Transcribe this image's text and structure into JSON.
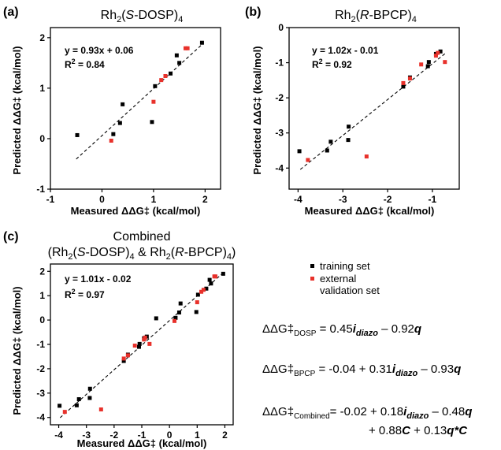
{
  "colors": {
    "training": "#000000",
    "validation": "#e8312b",
    "axis": "#000000",
    "fit_line": "#000000"
  },
  "legend": {
    "training_label": "training set",
    "validation_label_line1": "external",
    "validation_label_line2": "validation set"
  },
  "models": {
    "dosp": {
      "lhs_main": "ΔΔG‡",
      "lhs_sub": "DOSP",
      "eq_sign": " = ",
      "term1": "0.45",
      "term1_var": "i",
      "term1_var_sub": "diazo",
      "term2": " – 0.92",
      "term2_var": "q"
    },
    "bpcp": {
      "lhs_main": "ΔΔG‡",
      "lhs_sub": "BPCP",
      "eq_sign": " = ",
      "term1": "-0.04 + 0.31",
      "term1_var": "i",
      "term1_var_sub": "diazo",
      "term2": " – 0.93",
      "term2_var": "q"
    },
    "combined": {
      "lhs_main": "ΔΔG‡",
      "lhs_sub": "Combined",
      "eq_sign": "= ",
      "line1_a": "-0.02 + 0.18",
      "line1_var": "i",
      "line1_var_sub": "diazo",
      "line1_b": " – 0.48",
      "line1_var2": "q",
      "line2_a": "+ 0.88",
      "line2_var": "C",
      "line2_b": " + 0.13",
      "line2_var2": "q*C"
    }
  },
  "chart_data": [
    {
      "id": "a",
      "panel_letter": "(a)",
      "type": "scatter",
      "title_parts": {
        "pre": "Rh",
        "sub": "2",
        "mid": "(",
        "ital": "S",
        "post": "-DOSP)",
        "sub2": "4"
      },
      "xlabel": "Measured ΔΔG‡ (kcal/mol)",
      "ylabel": "Predicted ΔΔG‡ (kcal/mol)",
      "xlim": [
        -1,
        2.3
      ],
      "ylim": [
        -1,
        2.2
      ],
      "xticks": [
        -1,
        0,
        1,
        2
      ],
      "yticks": [
        -1,
        0,
        1,
        2
      ],
      "fit_equation": "y = 0.93x + 0.06",
      "r2_label": "R",
      "r2_sup": "2",
      "r2_value": " = 0.84",
      "fit": {
        "slope": 0.93,
        "intercept": 0.06,
        "x_range": [
          -0.5,
          1.97
        ]
      },
      "series": [
        {
          "name": "training set",
          "color_key": "training",
          "points": [
            [
              -0.48,
              0.07
            ],
            [
              0.22,
              0.09
            ],
            [
              0.35,
              0.31
            ],
            [
              0.4,
              0.68
            ],
            [
              0.97,
              0.33
            ],
            [
              1.03,
              1.04
            ],
            [
              1.33,
              1.29
            ],
            [
              1.45,
              1.65
            ],
            [
              1.5,
              1.5
            ],
            [
              1.94,
              1.9
            ]
          ]
        },
        {
          "name": "external validation set",
          "color_key": "validation",
          "points": [
            [
              0.18,
              -0.04
            ],
            [
              1.0,
              0.73
            ],
            [
              1.15,
              1.16
            ],
            [
              1.23,
              1.24
            ],
            [
              1.62,
              1.79
            ],
            [
              1.66,
              1.79
            ]
          ]
        }
      ]
    },
    {
      "id": "b",
      "panel_letter": "(b)",
      "type": "scatter",
      "title_parts": {
        "pre": "Rh",
        "sub": "2",
        "mid": "(",
        "ital": "R",
        "post": "-BPCP)",
        "sub2": "4"
      },
      "xlabel": "Measured ΔΔG‡ (kcal/mol)",
      "ylabel": "Predicted ΔΔG‡ (kcal/mol)",
      "xlim": [
        -4.2,
        -0.4
      ],
      "ylim": [
        -4.6,
        0
      ],
      "xticks": [
        -4,
        -3,
        -2,
        -1
      ],
      "yticks": [
        -4,
        -3,
        -2,
        -1,
        0
      ],
      "fit_equation": "y = 1.02x - 0.01",
      "r2_label": "R",
      "r2_sup": "2",
      "r2_value": " = 0.92",
      "fit": {
        "slope": 1.02,
        "intercept": -0.01,
        "x_range": [
          -3.95,
          -0.72
        ]
      },
      "series": [
        {
          "name": "training set",
          "color_key": "training",
          "points": [
            [
              -3.97,
              -3.52
            ],
            [
              -3.35,
              -3.5
            ],
            [
              -3.27,
              -3.25
            ],
            [
              -2.87,
              -2.82
            ],
            [
              -2.88,
              -3.2
            ],
            [
              -1.65,
              -1.68
            ],
            [
              -1.5,
              -1.42
            ],
            [
              -1.1,
              -1.1
            ],
            [
              -1.08,
              -0.98
            ],
            [
              -0.92,
              -0.75
            ],
            [
              -0.82,
              -0.68
            ]
          ]
        },
        {
          "name": "external validation set",
          "color_key": "validation",
          "points": [
            [
              -3.78,
              -3.77
            ],
            [
              -2.47,
              -3.67
            ],
            [
              -1.65,
              -1.58
            ],
            [
              -1.5,
              -1.45
            ],
            [
              -1.25,
              -1.05
            ],
            [
              -0.92,
              -0.8
            ],
            [
              -0.88,
              -0.72
            ],
            [
              -0.72,
              -0.98
            ]
          ]
        }
      ]
    },
    {
      "id": "c",
      "panel_letter": "(c)",
      "type": "scatter",
      "title_line1": "Combined",
      "title_line2": {
        "pre1": "(Rh",
        "sub1": "2",
        "mid1": "(",
        "ital1": "S",
        "post1": "-DOSP)",
        "sub1b": "4",
        "amp": " & Rh",
        "sub2": "2",
        "mid2": "(",
        "ital2": "R",
        "post2": "-BPCP)",
        "sub2b": "4",
        "close": ")"
      },
      "xlabel": "Measured ΔΔG‡ (kcal/mol)",
      "ylabel": "Predicted ΔΔG‡ (kcal/mol)",
      "xlim": [
        -4.3,
        2.3
      ],
      "ylim": [
        -4.3,
        2.3
      ],
      "xticks": [
        -4,
        -3,
        -2,
        -1,
        0,
        1,
        2
      ],
      "yticks": [
        -4,
        -3,
        -2,
        -1,
        0,
        1,
        2
      ],
      "fit_equation": "y = 1.01x - 0.02",
      "r2_label": "R",
      "r2_sup": "2",
      "r2_value": " = 0.97",
      "fit": {
        "slope": 1.01,
        "intercept": -0.02,
        "x_range": [
          -3.95,
          1.95
        ]
      },
      "series": [
        {
          "name": "training set",
          "color_key": "training",
          "points": [
            [
              -3.97,
              -3.52
            ],
            [
              -3.35,
              -3.5
            ],
            [
              -3.27,
              -3.25
            ],
            [
              -2.87,
              -2.82
            ],
            [
              -2.88,
              -3.2
            ],
            [
              -1.65,
              -1.68
            ],
            [
              -1.5,
              -1.42
            ],
            [
              -1.1,
              -1.1
            ],
            [
              -1.08,
              -0.98
            ],
            [
              -0.92,
              -0.75
            ],
            [
              -0.82,
              -0.68
            ],
            [
              -0.48,
              0.07
            ],
            [
              0.22,
              0.09
            ],
            [
              0.35,
              0.31
            ],
            [
              0.4,
              0.68
            ],
            [
              0.97,
              0.33
            ],
            [
              1.03,
              1.04
            ],
            [
              1.33,
              1.29
            ],
            [
              1.45,
              1.65
            ],
            [
              1.5,
              1.5
            ],
            [
              1.94,
              1.9
            ]
          ]
        },
        {
          "name": "external validation set",
          "color_key": "validation",
          "points": [
            [
              -3.78,
              -3.77
            ],
            [
              -2.47,
              -3.67
            ],
            [
              -1.65,
              -1.58
            ],
            [
              -1.5,
              -1.45
            ],
            [
              -1.25,
              -1.05
            ],
            [
              -0.92,
              -0.8
            ],
            [
              -0.88,
              -0.72
            ],
            [
              -0.72,
              -0.98
            ],
            [
              0.18,
              -0.04
            ],
            [
              1.0,
              0.73
            ],
            [
              1.15,
              1.16
            ],
            [
              1.23,
              1.24
            ],
            [
              1.62,
              1.79
            ],
            [
              1.66,
              1.79
            ]
          ]
        }
      ]
    }
  ]
}
